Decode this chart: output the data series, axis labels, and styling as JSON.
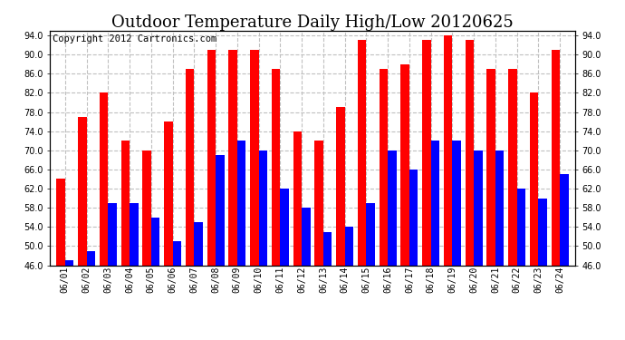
{
  "title": "Outdoor Temperature Daily High/Low 20120625",
  "copyright": "Copyright 2012 Cartronics.com",
  "dates": [
    "06/01",
    "06/02",
    "06/03",
    "06/04",
    "06/05",
    "06/06",
    "06/07",
    "06/08",
    "06/09",
    "06/10",
    "06/11",
    "06/12",
    "06/13",
    "06/14",
    "06/15",
    "06/16",
    "06/17",
    "06/18",
    "06/19",
    "06/20",
    "06/21",
    "06/22",
    "06/23",
    "06/24"
  ],
  "highs": [
    64,
    77,
    82,
    72,
    70,
    76,
    87,
    91,
    91,
    91,
    87,
    74,
    72,
    79,
    93,
    87,
    88,
    93,
    94,
    93,
    87,
    87,
    82,
    91
  ],
  "lows": [
    47,
    49,
    59,
    59,
    56,
    51,
    55,
    69,
    72,
    70,
    62,
    58,
    53,
    54,
    59,
    70,
    66,
    72,
    72,
    70,
    70,
    62,
    60,
    65
  ],
  "high_color": "#ff0000",
  "low_color": "#0000ff",
  "background_color": "#ffffff",
  "plot_bg_color": "#ffffff",
  "grid_color": "#c0c0c0",
  "ymin": 46,
  "ymax": 95,
  "yticks": [
    46.0,
    50.0,
    54.0,
    58.0,
    62.0,
    66.0,
    70.0,
    74.0,
    78.0,
    82.0,
    86.0,
    90.0,
    94.0
  ],
  "title_fontsize": 13,
  "copyright_fontsize": 7.5,
  "tick_fontsize": 7,
  "bar_width": 0.4,
  "figwidth": 6.9,
  "figheight": 3.75,
  "dpi": 100
}
